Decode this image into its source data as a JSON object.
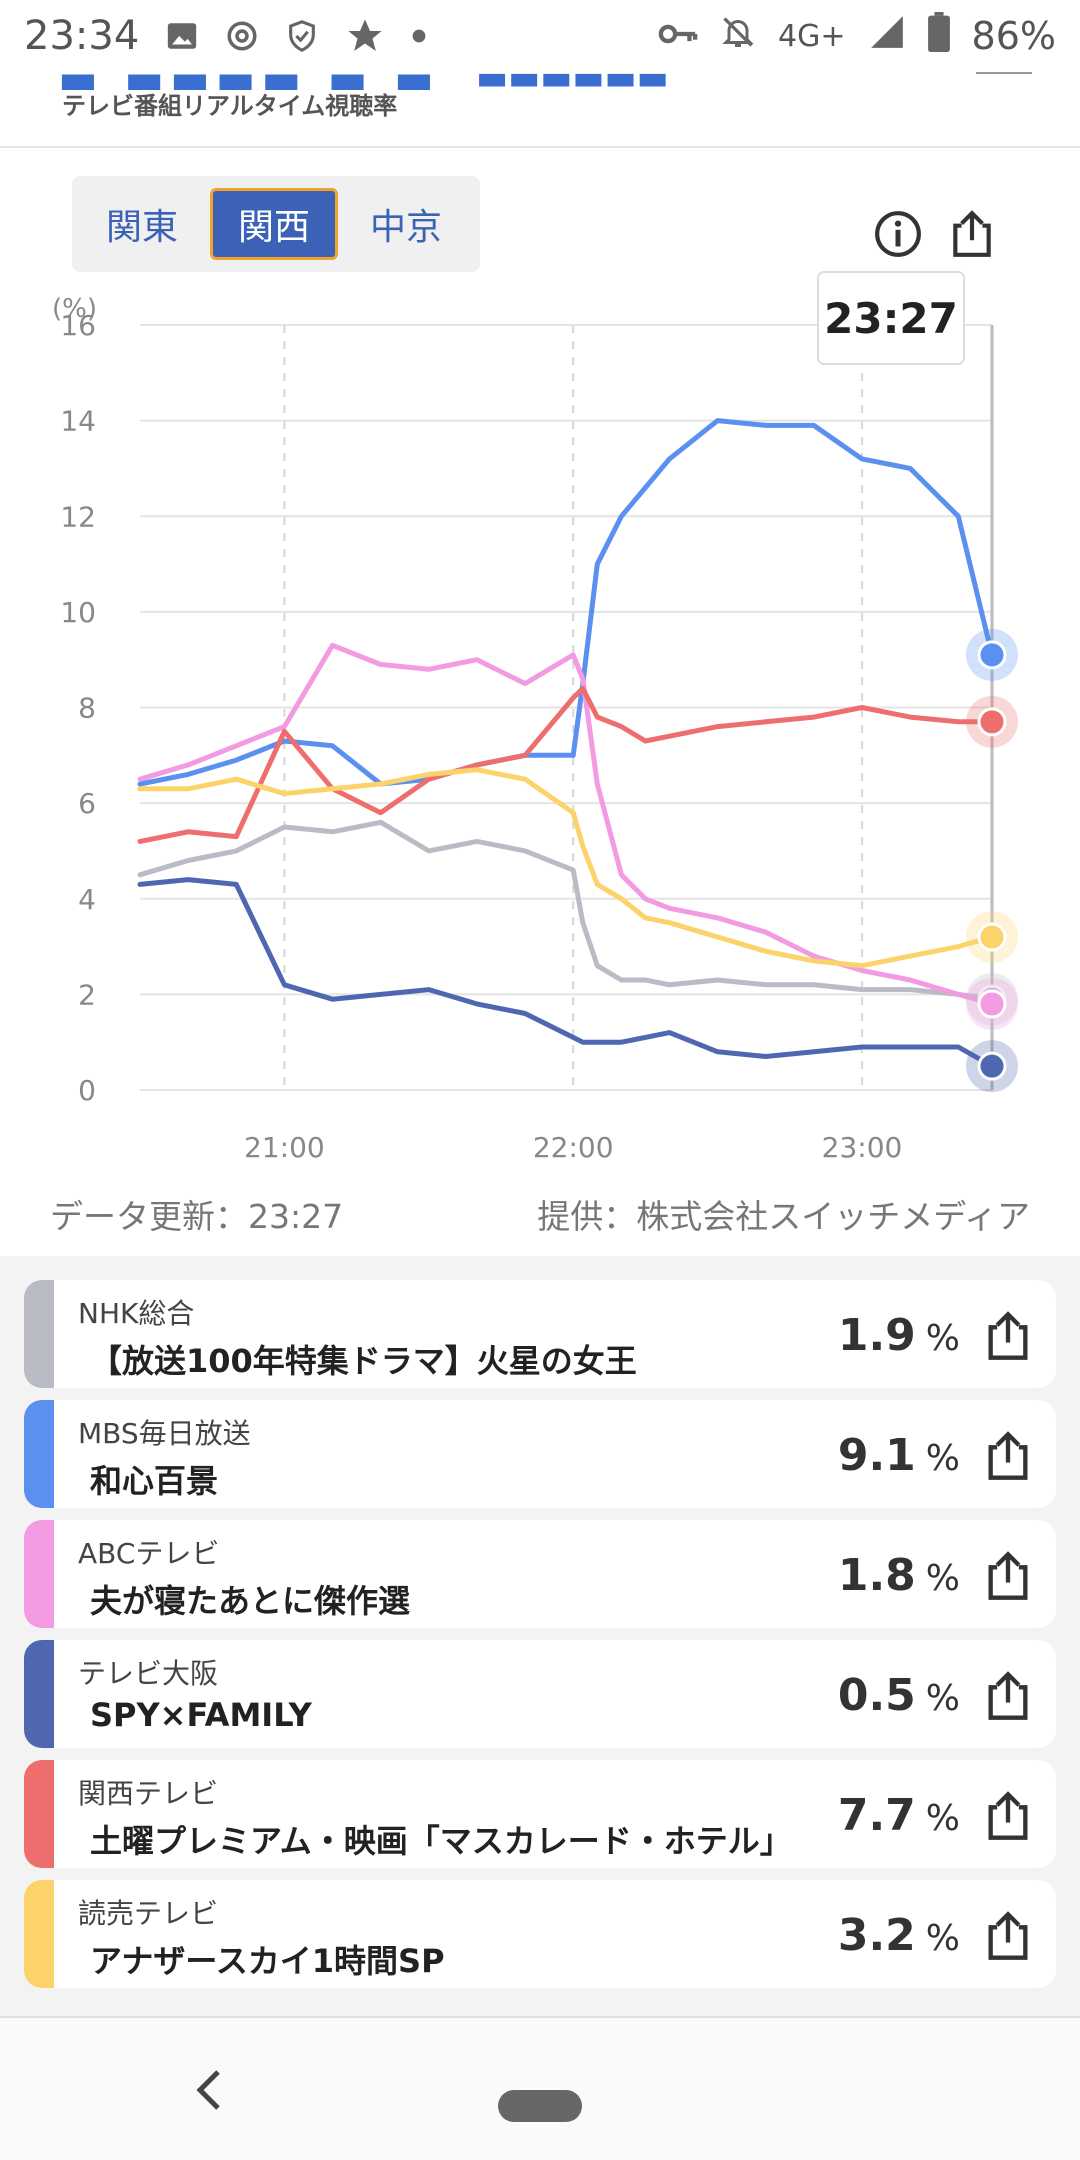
{
  "status": {
    "time": "23:34",
    "network": "4G+",
    "battery": "86%"
  },
  "header": {
    "subtitle": "テレビ番組リアルタイム視聴率"
  },
  "regions": [
    {
      "label": "関東",
      "active": false
    },
    {
      "label": "関西",
      "active": true
    },
    {
      "label": "中京",
      "active": false
    }
  ],
  "chart_data": {
    "type": "line",
    "yunit": "(%)",
    "ylim": [
      0,
      16
    ],
    "yticks": [
      "0",
      "2",
      "4",
      "6",
      "8",
      "10",
      "12",
      "14",
      "16"
    ],
    "xlim": [
      "20:30",
      "23:27"
    ],
    "xticks": [
      "21:00",
      "22:00",
      "23:00"
    ],
    "tooltip": "23:27",
    "grid": true,
    "x": [
      "20:30",
      "20:40",
      "20:50",
      "21:00",
      "21:10",
      "21:20",
      "21:30",
      "21:40",
      "21:50",
      "22:00",
      "22:02",
      "22:05",
      "22:10",
      "22:15",
      "22:20",
      "22:30",
      "22:40",
      "22:50",
      "23:00",
      "23:10",
      "23:20",
      "23:27"
    ],
    "series": [
      {
        "color": "#b9bcc4",
        "values": [
          4.5,
          4.8,
          5.0,
          5.5,
          5.4,
          5.6,
          5.0,
          5.2,
          5.0,
          4.6,
          3.5,
          2.6,
          2.3,
          2.3,
          2.2,
          2.3,
          2.2,
          2.2,
          2.1,
          2.1,
          2.0,
          1.9
        ]
      },
      {
        "color": "#5b8ff0",
        "values": [
          6.4,
          6.6,
          6.9,
          7.3,
          7.2,
          6.4,
          6.5,
          6.8,
          7.0,
          7.0,
          8.5,
          11.0,
          12.0,
          12.6,
          13.2,
          14.0,
          13.9,
          13.9,
          13.2,
          13.0,
          12.0,
          9.1
        ]
      },
      {
        "color": "#f29ae2",
        "values": [
          6.5,
          6.8,
          7.2,
          7.6,
          9.3,
          8.9,
          8.8,
          9.0,
          8.5,
          9.1,
          8.6,
          6.4,
          4.5,
          4.0,
          3.8,
          3.6,
          3.3,
          2.8,
          2.5,
          2.3,
          2.0,
          1.8
        ]
      },
      {
        "color": "#4f67b0",
        "values": [
          4.3,
          4.4,
          4.3,
          2.2,
          1.9,
          2.0,
          2.1,
          1.8,
          1.6,
          1.1,
          1.0,
          1.0,
          1.0,
          1.1,
          1.2,
          0.8,
          0.7,
          0.8,
          0.9,
          0.9,
          0.9,
          0.5
        ]
      },
      {
        "color": "#ee6e6e",
        "values": [
          5.2,
          5.4,
          5.3,
          7.5,
          6.3,
          5.8,
          6.5,
          6.8,
          7.0,
          8.2,
          8.4,
          7.8,
          7.6,
          7.3,
          7.4,
          7.6,
          7.7,
          7.8,
          8.0,
          7.8,
          7.7,
          7.7
        ]
      },
      {
        "color": "#fcd36a",
        "values": [
          6.3,
          6.3,
          6.5,
          6.2,
          6.3,
          6.4,
          6.6,
          6.7,
          6.5,
          5.8,
          5.1,
          4.3,
          4.0,
          3.6,
          3.5,
          3.2,
          2.9,
          2.7,
          2.6,
          2.8,
          3.0,
          3.2
        ]
      }
    ]
  },
  "meta": {
    "updated": "データ更新：23:27",
    "provider": "提供：株式会社スイッチメディア"
  },
  "channels": [
    {
      "channel": "NHK総合",
      "program": "【放送100年特集ドラマ】火星の女王",
      "value": "1.9",
      "unit": "%",
      "color": "#b9bcc4"
    },
    {
      "channel": "MBS毎日放送",
      "program": "和心百景",
      "value": "9.1",
      "unit": "%",
      "color": "#5b8ff0"
    },
    {
      "channel": "ABCテレビ",
      "program": "夫が寝たあとに傑作選",
      "value": "1.8",
      "unit": "%",
      "color": "#f29ae2"
    },
    {
      "channel": "テレビ大阪",
      "program": "SPY×FAMILY",
      "value": "0.5",
      "unit": "%",
      "color": "#4f67b0"
    },
    {
      "channel": "関西テレビ",
      "program": "土曜プレミアム・映画「マスカレード・ホテル」",
      "value": "7.7",
      "unit": "%",
      "color": "#ee6e6e"
    },
    {
      "channel": "読売テレビ",
      "program": "アナザースカイ1時間SP",
      "value": "3.2",
      "unit": "%",
      "color": "#fcd36a"
    }
  ]
}
